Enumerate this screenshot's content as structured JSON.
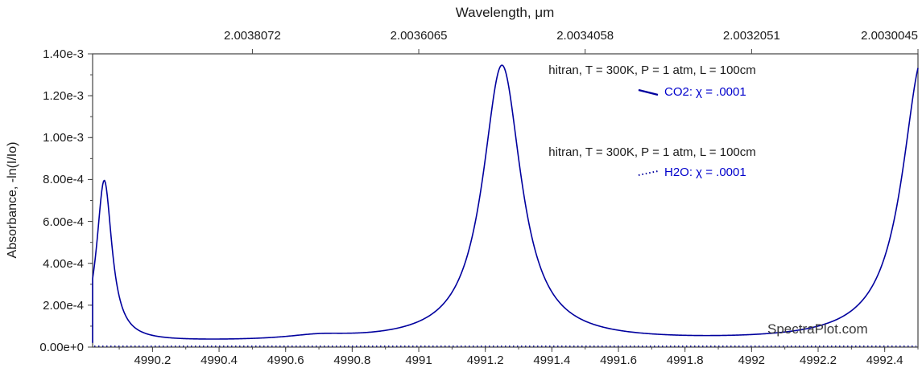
{
  "colors": {
    "background": "#ffffff",
    "line": "#00009E",
    "legend_text": "#0000CC",
    "axis": "#444444",
    "text": "#1a1a1a",
    "watermark": "#3a3a3a"
  },
  "chart_data": {
    "type": "line",
    "title": "",
    "top_axis": {
      "label": "Wavelength, μm",
      "tick_labels": [
        "2.0038072",
        "2.0036065",
        "2.0034058",
        "2.0032051",
        "2.0030045"
      ]
    },
    "bottom_axis": {
      "tick_labels": [
        "4990.2",
        "4990.4",
        "4990.6",
        "4990.8",
        "4991",
        "4991.2",
        "4991.4",
        "4991.6",
        "4991.8",
        "4992",
        "4992.2",
        "4992.4"
      ],
      "range": [
        4990.02,
        4992.5
      ],
      "minor_tick_step": 0.1
    },
    "left_axis": {
      "label": "Absorbance, -ln(I/Io)",
      "tick_labels": [
        "0.00e+0",
        "2.00e-4",
        "4.00e-4",
        "6.00e-4",
        "8.00e-4",
        "1.00e-3",
        "1.20e-3",
        "1.40e-3"
      ],
      "range": [
        0,
        0.0014
      ],
      "minor_tick_step": 0.0001
    },
    "grid": false,
    "series": [
      {
        "name": "CO2",
        "line_style": "solid",
        "model": "lorentzian_sum",
        "baseline": 2e-05,
        "peaks": [
          {
            "center": 4990.055,
            "amplitude": 0.00077,
            "hwhm": 0.028
          },
          {
            "center": 4990.7,
            "amplitude": 2e-05,
            "hwhm": 0.12
          },
          {
            "center": 4991.25,
            "amplitude": 0.00132,
            "hwhm": 0.07
          },
          {
            "center": 4992.515,
            "amplitude": 0.00136,
            "hwhm": 0.075
          }
        ],
        "peak_values_note": "peaks at ~4990.05 (7.9e-4), 4991.25 (1.34e-3), right-edge rise to 1.32e-3 at 4992.5"
      },
      {
        "name": "H2O",
        "line_style": "dotted",
        "model": "constant",
        "value": 0.0
      }
    ],
    "legend": [
      {
        "conditions": "hitran, T = 300K, P = 1 atm, L = 100cm",
        "label": "CO2: χ = .0001",
        "style": "solid"
      },
      {
        "conditions": "hitran, T = 300K, P = 1 atm, L = 100cm",
        "label": "H2O: χ = .0001",
        "style": "dotted"
      }
    ],
    "watermark": "SpectraPlot.com"
  }
}
